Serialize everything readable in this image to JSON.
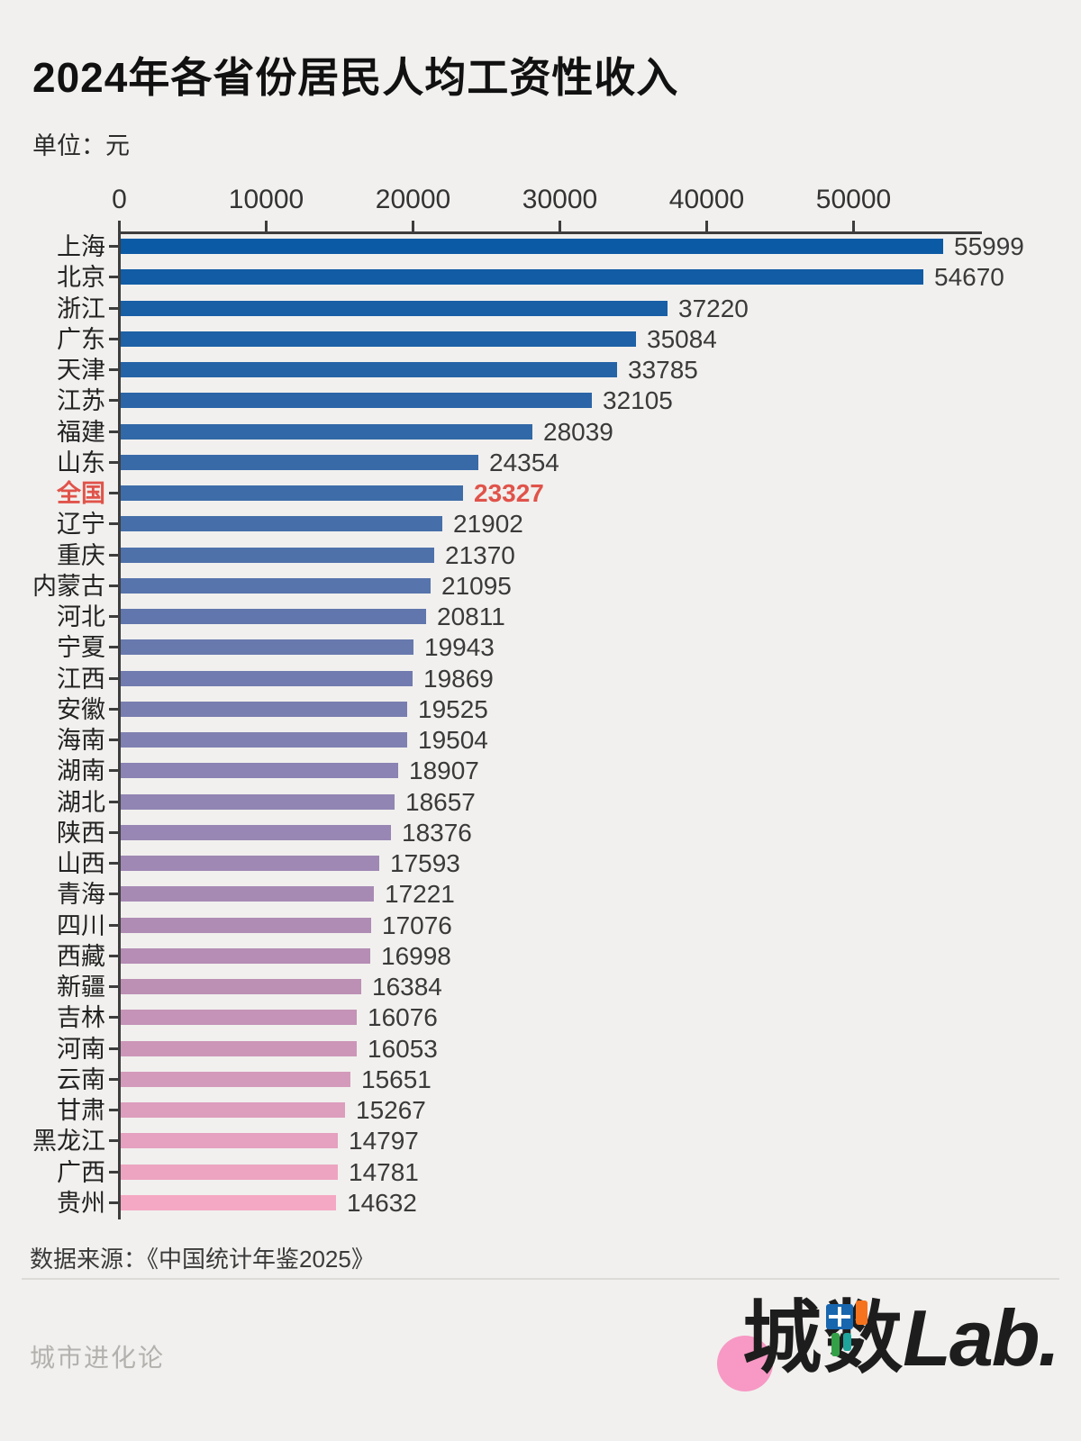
{
  "title": "2024年各省份居民人均工资性收入",
  "unit_label": "单位：元",
  "chart_data": {
    "type": "bar",
    "orientation": "horizontal",
    "title": "2024年各省份居民人均工资性收入",
    "unit": "元",
    "x_ticks": [
      0,
      10000,
      20000,
      30000,
      40000,
      50000
    ],
    "xlim": [
      0,
      58800
    ],
    "grid": false,
    "categories": [
      "上海",
      "北京",
      "浙江",
      "广东",
      "天津",
      "江苏",
      "福建",
      "山东",
      "全国",
      "辽宁",
      "重庆",
      "内蒙古",
      "河北",
      "宁夏",
      "江西",
      "安徽",
      "海南",
      "湖南",
      "湖北",
      "陕西",
      "山西",
      "青海",
      "四川",
      "西藏",
      "新疆",
      "吉林",
      "河南",
      "云南",
      "甘肃",
      "黑龙江",
      "广西",
      "贵州"
    ],
    "values": [
      55999,
      54670,
      37220,
      35084,
      33785,
      32105,
      28039,
      24354,
      23327,
      21902,
      21370,
      21095,
      20811,
      19943,
      19869,
      19525,
      19504,
      18907,
      18657,
      18376,
      17593,
      17221,
      17076,
      16998,
      16384,
      16076,
      16053,
      15651,
      15267,
      14797,
      14781,
      14632
    ],
    "bar_colors": [
      "#0B5AA5",
      "#115CA5",
      "#185FA6",
      "#1E61A6",
      "#2563A7",
      "#2B65A7",
      "#3168A7",
      "#386AA8",
      "#3E6CA8",
      "#466FA9",
      "#4F71AA",
      "#5774AC",
      "#6076AD",
      "#6879AE",
      "#717BAF",
      "#797EB0",
      "#8180B2",
      "#8A83B3",
      "#9185B3",
      "#9886B4",
      "#9F88B4",
      "#A78AB4",
      "#AE8CB4",
      "#B58DB5",
      "#BC8FB5",
      "#C493B7",
      "#CC96B9",
      "#D49ABB",
      "#DD9DBD",
      "#E5A1BF",
      "#EDA4C1",
      "#F5A8C3"
    ],
    "highlight": {
      "category": "全国",
      "value": 23327,
      "color": "#E0534A"
    },
    "axis_color": "#3D3D3D",
    "value_label_color": "#3A3A3A"
  },
  "source_note": "数据来源：《中国统计年鉴2025》",
  "footer": {
    "watermark": "城市进化论",
    "logo": {
      "char_cheng": "城",
      "char_shu": "数",
      "suffix": "Lab.",
      "circle_color": "#F799C4",
      "accent_blue": "#1766AE",
      "accent_orange": "#F5731E",
      "accent_green": "#33A048",
      "accent_teal": "#1FA59B"
    }
  }
}
